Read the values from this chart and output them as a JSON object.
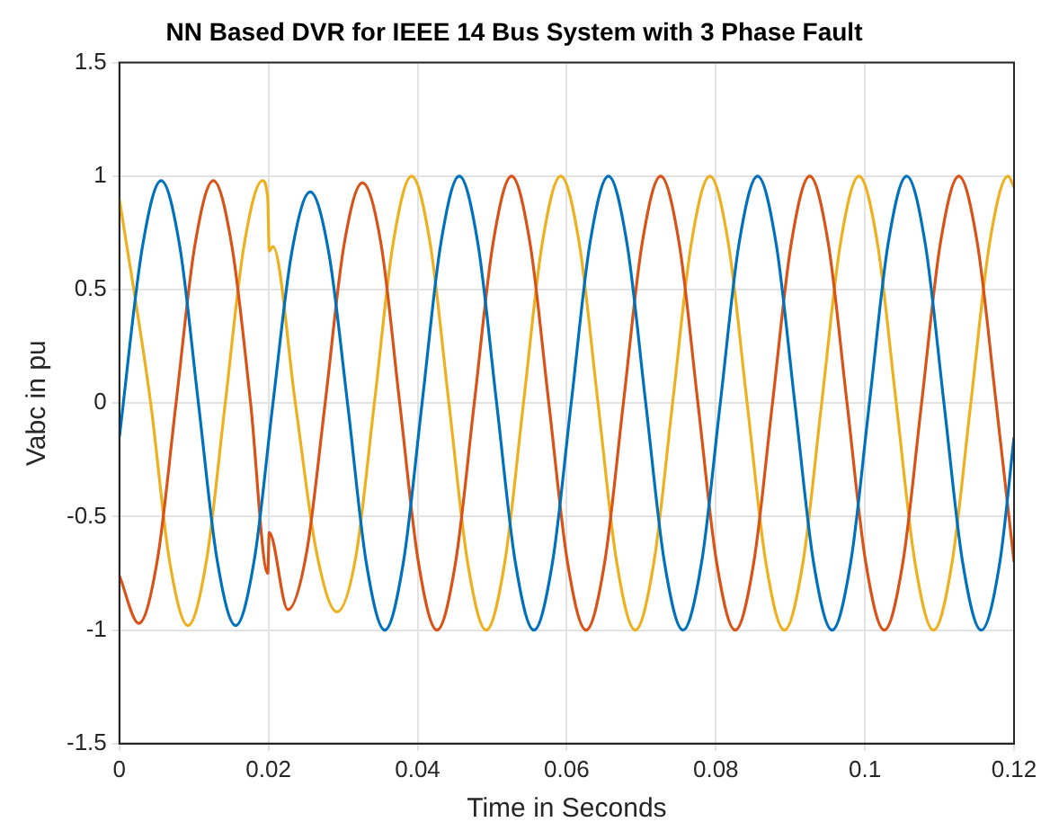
{
  "chart_data": {
    "type": "line",
    "title": "NN Based DVR for IEEE 14 Bus System with 3 Phase Fault",
    "xlabel": "Time in Seconds",
    "ylabel": "Vabc in pu",
    "xlim": [
      0,
      0.12
    ],
    "xticks": [
      0,
      0.02,
      0.04,
      0.06,
      0.08,
      0.1,
      0.12
    ],
    "ylim": [
      -1.5,
      1.5
    ],
    "yticks": [
      -1.5,
      -1,
      -0.5,
      0,
      0.5,
      1,
      1.5
    ],
    "grid": true,
    "legend": false,
    "marker": "none",
    "line_style": "solid",
    "series": [
      {
        "color": "#0072bd",
        "x": [
          0,
          0.0031,
          0.0056,
          0.0081,
          0.0106,
          0.0131,
          0.0156,
          0.0181,
          0.0206,
          0.0231,
          0.0256,
          0.0281,
          0.0306,
          0.0331,
          0.0356,
          0.0381,
          0.0406,
          0.0431,
          0.0456,
          0.0481,
          0.0506,
          0.0531,
          0.0556,
          0.0581,
          0.0606,
          0.0631,
          0.0656,
          0.0681,
          0.0706,
          0.0731,
          0.0756,
          0.0781,
          0.0806,
          0.0831,
          0.0856,
          0.0881,
          0.0906,
          0.0931,
          0.0956,
          0.0981,
          0.1006,
          0.1031,
          0.1056,
          0.1081,
          0.1106,
          0.1131,
          0.1156,
          0.1181,
          0.12
        ],
        "values": [
          -0.15,
          0.69,
          0.98,
          0.69,
          0,
          -0.69,
          -0.98,
          -0.69,
          0,
          0.66,
          0.93,
          0.66,
          0,
          -0.7,
          -1,
          -0.7,
          0,
          0.7,
          1,
          0.7,
          0,
          -0.7,
          -1,
          -0.7,
          0,
          0.7,
          1,
          0.7,
          0,
          -0.7,
          -1,
          -0.7,
          0,
          0.7,
          1,
          0.7,
          0,
          -0.7,
          -1,
          -0.7,
          0,
          0.7,
          1,
          0.7,
          0,
          -0.7,
          -1,
          -0.7,
          -0.15
        ]
      },
      {
        "color": "#d95319",
        "x": [
          0,
          0.0026,
          0.0051,
          0.0076,
          0.0101,
          0.0126,
          0.0151,
          0.0176,
          0.0199,
          0.0201,
          0.0226,
          0.0251,
          0.0276,
          0.0301,
          0.0326,
          0.0351,
          0.0376,
          0.0401,
          0.0426,
          0.0451,
          0.0476,
          0.0501,
          0.0526,
          0.0551,
          0.0576,
          0.0601,
          0.0626,
          0.0651,
          0.0676,
          0.0701,
          0.0726,
          0.0751,
          0.0776,
          0.0801,
          0.0826,
          0.0851,
          0.0876,
          0.0901,
          0.0926,
          0.0951,
          0.0976,
          0.1001,
          0.1026,
          0.1051,
          0.1076,
          0.1101,
          0.1126,
          0.1151,
          0.1176,
          0.12
        ],
        "values": [
          -0.76,
          -0.97,
          -0.69,
          0,
          0.69,
          0.98,
          0.69,
          0,
          -0.75,
          -0.57,
          -0.91,
          -0.66,
          0,
          0.69,
          0.97,
          0.7,
          0,
          -0.7,
          -1,
          -0.7,
          0,
          0.7,
          1,
          0.7,
          0,
          -0.7,
          -1,
          -0.7,
          0,
          0.7,
          1,
          0.7,
          0,
          -0.7,
          -1,
          -0.7,
          0,
          0.7,
          1,
          0.7,
          0,
          -0.7,
          -1,
          -0.7,
          0,
          0.7,
          1,
          0.7,
          0,
          -0.7
        ]
      },
      {
        "color": "#edb120",
        "x": [
          0,
          0.0042,
          0.0067,
          0.0092,
          0.0117,
          0.0142,
          0.0167,
          0.0192,
          0.0199,
          0.0201,
          0.0206,
          0.0236,
          0.0264,
          0.0292,
          0.0317,
          0.0342,
          0.0367,
          0.0392,
          0.0417,
          0.0442,
          0.0467,
          0.0492,
          0.0517,
          0.0542,
          0.0567,
          0.0592,
          0.0617,
          0.0642,
          0.0667,
          0.0692,
          0.0717,
          0.0742,
          0.0767,
          0.0792,
          0.0817,
          0.0842,
          0.0867,
          0.0892,
          0.0917,
          0.0942,
          0.0967,
          0.0992,
          0.1017,
          0.1042,
          0.1067,
          0.1092,
          0.1117,
          0.1142,
          0.1167,
          0.1192,
          0.12
        ],
        "values": [
          0.9,
          0,
          -0.69,
          -0.98,
          -0.69,
          0,
          0.69,
          0.98,
          0.9,
          0.67,
          0.69,
          0,
          -0.65,
          -0.92,
          -0.68,
          0,
          0.7,
          1,
          0.7,
          0,
          -0.7,
          -1,
          -0.7,
          0,
          0.7,
          1,
          0.7,
          0,
          -0.7,
          -1,
          -0.7,
          0,
          0.7,
          1,
          0.7,
          0,
          -0.7,
          -1,
          -0.7,
          0,
          0.7,
          1,
          0.7,
          0,
          -0.7,
          -1,
          -0.7,
          0,
          0.7,
          1,
          0.95
        ]
      }
    ]
  }
}
